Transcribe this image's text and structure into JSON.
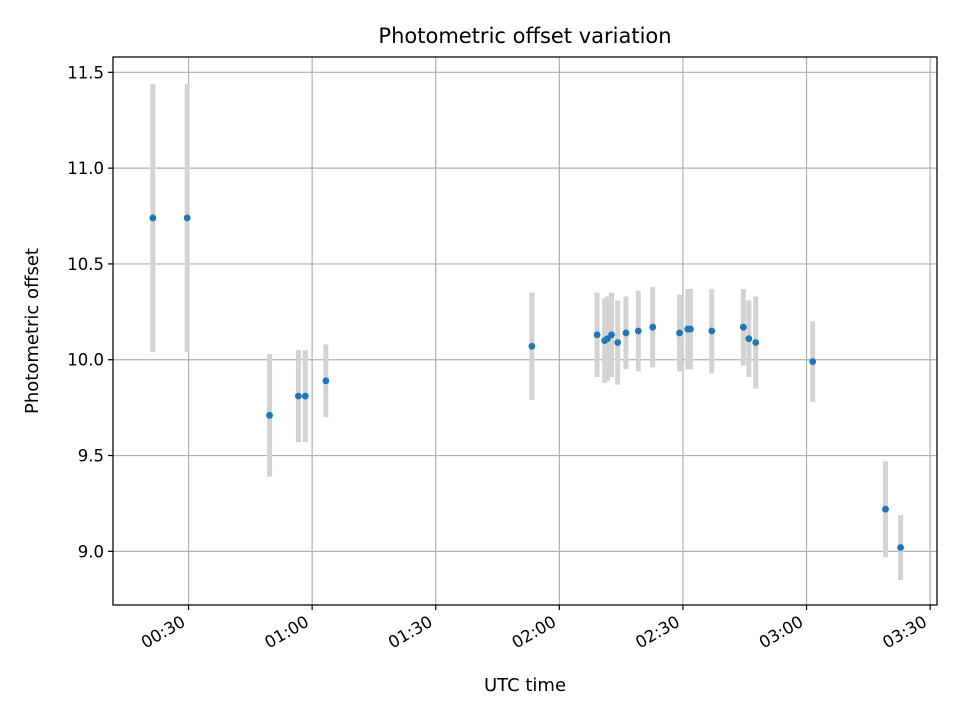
{
  "chart_data": {
    "type": "scatter",
    "title": "Photometric offset variation",
    "xlabel": "UTC time",
    "ylabel": "Photometric offset",
    "xlim": [
      "00:11:40",
      "03:31:40"
    ],
    "ylim": [
      8.72,
      11.58
    ],
    "x_ticks": [
      "00:30",
      "01:00",
      "01:30",
      "02:00",
      "02:30",
      "03:00",
      "03:30"
    ],
    "y_ticks": [
      "9.0",
      "9.5",
      "10.0",
      "10.5",
      "11.0",
      "11.5"
    ],
    "grid": true,
    "colors": {
      "marker": "#1f77b4",
      "errorbar": "#d3d3d3",
      "grid": "#b0b0b0"
    },
    "series": [
      {
        "points": [
          {
            "x": "00:21:20",
            "y": 10.74,
            "err": 0.7
          },
          {
            "x": "00:29:40",
            "y": 10.74,
            "err": 0.7
          },
          {
            "x": "00:49:40",
            "y": 9.71,
            "err": 0.32
          },
          {
            "x": "00:56:40",
            "y": 9.81,
            "err": 0.24
          },
          {
            "x": "00:58:20",
            "y": 9.81,
            "err": 0.24
          },
          {
            "x": "01:03:20",
            "y": 9.89,
            "err": 0.19
          },
          {
            "x": "01:53:20",
            "y": 10.07,
            "err": 0.28
          },
          {
            "x": "02:09:10",
            "y": 10.13,
            "err": 0.22
          },
          {
            "x": "02:11:00",
            "y": 10.1,
            "err": 0.22
          },
          {
            "x": "02:11:40",
            "y": 10.11,
            "err": 0.22
          },
          {
            "x": "02:12:40",
            "y": 10.13,
            "err": 0.22
          },
          {
            "x": "02:14:10",
            "y": 10.09,
            "err": 0.22
          },
          {
            "x": "02:16:10",
            "y": 10.14,
            "err": 0.19
          },
          {
            "x": "02:19:10",
            "y": 10.15,
            "err": 0.21
          },
          {
            "x": "02:22:40",
            "y": 10.17,
            "err": 0.21
          },
          {
            "x": "02:29:10",
            "y": 10.14,
            "err": 0.2
          },
          {
            "x": "02:31:10",
            "y": 10.16,
            "err": 0.21
          },
          {
            "x": "02:31:50",
            "y": 10.16,
            "err": 0.21
          },
          {
            "x": "02:37:00",
            "y": 10.15,
            "err": 0.22
          },
          {
            "x": "02:44:40",
            "y": 10.17,
            "err": 0.2
          },
          {
            "x": "02:46:00",
            "y": 10.11,
            "err": 0.2
          },
          {
            "x": "02:47:40",
            "y": 10.09,
            "err": 0.24
          },
          {
            "x": "03:01:30",
            "y": 9.99,
            "err": 0.21
          },
          {
            "x": "03:19:10",
            "y": 9.22,
            "err": 0.25
          },
          {
            "x": "03:22:50",
            "y": 9.02,
            "err": 0.17
          }
        ]
      }
    ]
  }
}
